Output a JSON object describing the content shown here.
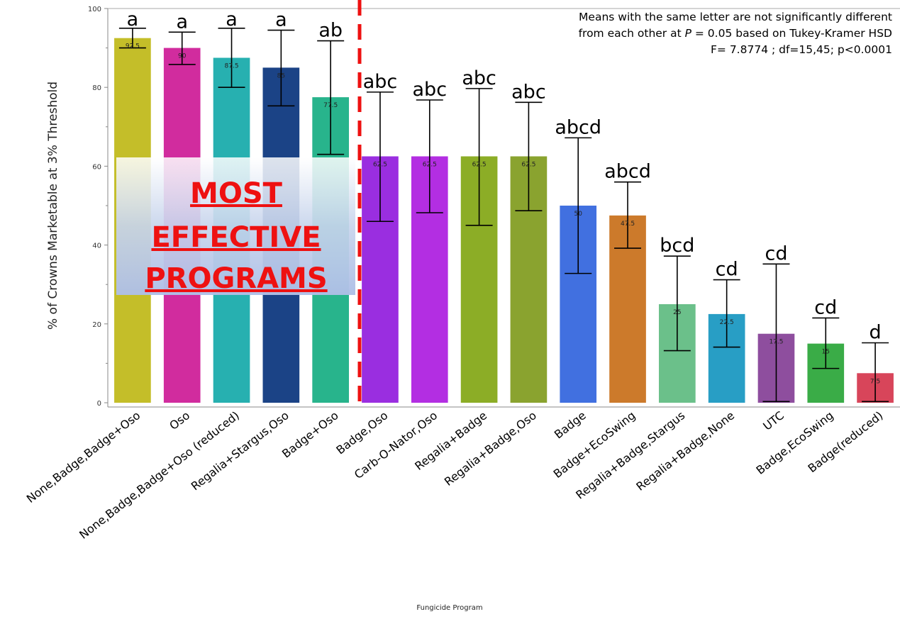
{
  "chart_data": {
    "type": "bar",
    "xlabel": "Fungicide Program",
    "ylabel": "% of Crowns Marketable at 3% Threshold",
    "ylim": [
      0,
      100
    ],
    "yticks": [
      "0",
      "20",
      "40",
      "60",
      "80",
      "100"
    ],
    "grid": false,
    "categories": [
      "None,Badge,Badge+Oso",
      "Oso",
      "None,Badge,Badge+Oso (reduced)",
      "Regalia+Stargus,Oso",
      "Badge+Oso",
      "Badge,Oso",
      "Carb-O-Nator,Oso",
      "Regalia+Badge",
      "Regalia+Badge,Oso",
      "Badge",
      "Badge+EcoSwing",
      "Regalia+Badge,Stargus",
      "Regalia+Badge,None",
      "UTC",
      "Badge,EcoSwing",
      "Badge(reduced)"
    ],
    "values": [
      92.5,
      90,
      87.5,
      85,
      77.5,
      62.5,
      62.5,
      62.5,
      62.5,
      50,
      47.5,
      25,
      22.5,
      17.5,
      15,
      7.5
    ],
    "value_labels": [
      "92.5",
      "90",
      "87.5",
      "85",
      "77.5",
      "62.5",
      "62.5",
      "62.5",
      "62.5",
      "50",
      "47.5",
      "25",
      "22.5",
      "17.5",
      "15",
      "7.5"
    ],
    "error_low": [
      90,
      85.8,
      80,
      75.3,
      63,
      46,
      48.2,
      45,
      48.7,
      32.8,
      39.2,
      13.2,
      14.1,
      0.3,
      8.7,
      0.3
    ],
    "error_high": [
      95,
      94,
      95,
      94.5,
      91.8,
      78.8,
      76.8,
      79.7,
      76.2,
      67.2,
      56,
      37.2,
      31.2,
      35.2,
      21.5,
      15.2
    ],
    "letters": [
      "a",
      "a",
      "a",
      "a",
      "ab",
      "abc",
      "abc",
      "abc",
      "abc",
      "abcd",
      "abcd",
      "bcd",
      "cd",
      "cd",
      "cd",
      "d"
    ],
    "colors": [
      "#c4be29",
      "#d12c9e",
      "#27b0b0",
      "#1b4386",
      "#28b48c",
      "#9a2ee0",
      "#b32ee2",
      "#8cad26",
      "#8aa32f",
      "#4170e0",
      "#cc7a2b",
      "#6bc08a",
      "#289ec5",
      "#8e4e9e",
      "#3aac47",
      "#d8455a"
    ],
    "annotation": {
      "lines": [
        [
          "Means with the same letter are not significantly different"
        ],
        [
          "from each other at ",
          "P",
          " = 0.05 based on Tukey-Kramer HSD"
        ],
        [
          "F= 7.8774 ; df=15,45; p<0.0001"
        ]
      ]
    },
    "overlay": {
      "lines": [
        "MOST",
        "EFFECTIVE",
        "PROGRAMS"
      ],
      "text_color": "#ee1111"
    },
    "divider_color": "#ee1111"
  }
}
